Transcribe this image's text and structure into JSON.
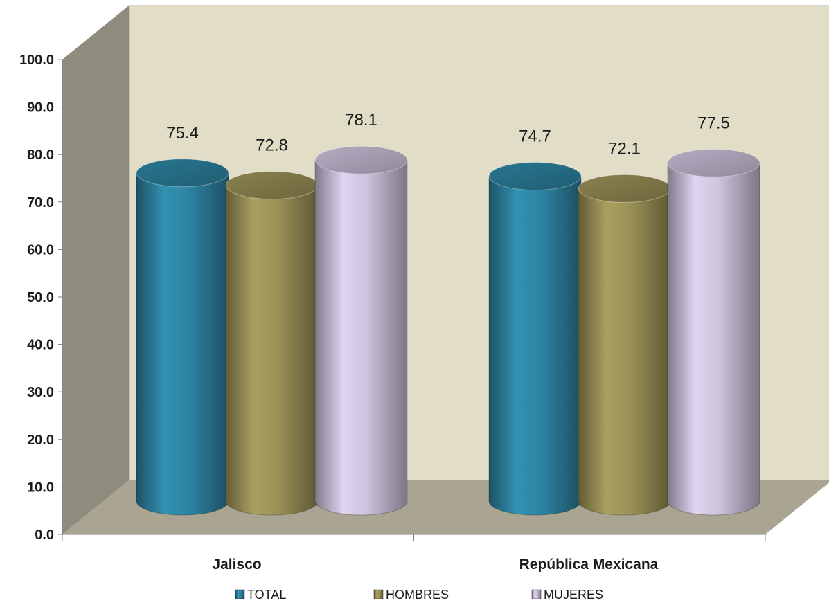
{
  "chart_data": {
    "type": "bar",
    "style": "3d-cylinder",
    "categories": [
      "Jalisco",
      "República Mexicana"
    ],
    "series": [
      {
        "name": "TOTAL",
        "color": "#2e86a4",
        "values": [
          75.4,
          74.7
        ]
      },
      {
        "name": "HOMBRES",
        "color": "#9d9358",
        "values": [
          72.8,
          72.1
        ]
      },
      {
        "name": "MUJERES",
        "color": "#cfc4de",
        "values": [
          78.1,
          77.5
        ]
      }
    ],
    "value_labels": [
      "75.4",
      "72.8",
      "78.1",
      "74.7",
      "72.1",
      "77.5"
    ],
    "yticks": [
      "0.0",
      "10.0",
      "20.0",
      "30.0",
      "40.0",
      "50.0",
      "60.0",
      "70.0",
      "80.0",
      "90.0",
      "100.0"
    ],
    "ylim": [
      0,
      100
    ],
    "legend_position": "bottom",
    "grid": false,
    "wall_colors": {
      "back": "#e1ddc6",
      "side": "#8f8b7d",
      "floor": "#a9a592"
    }
  }
}
